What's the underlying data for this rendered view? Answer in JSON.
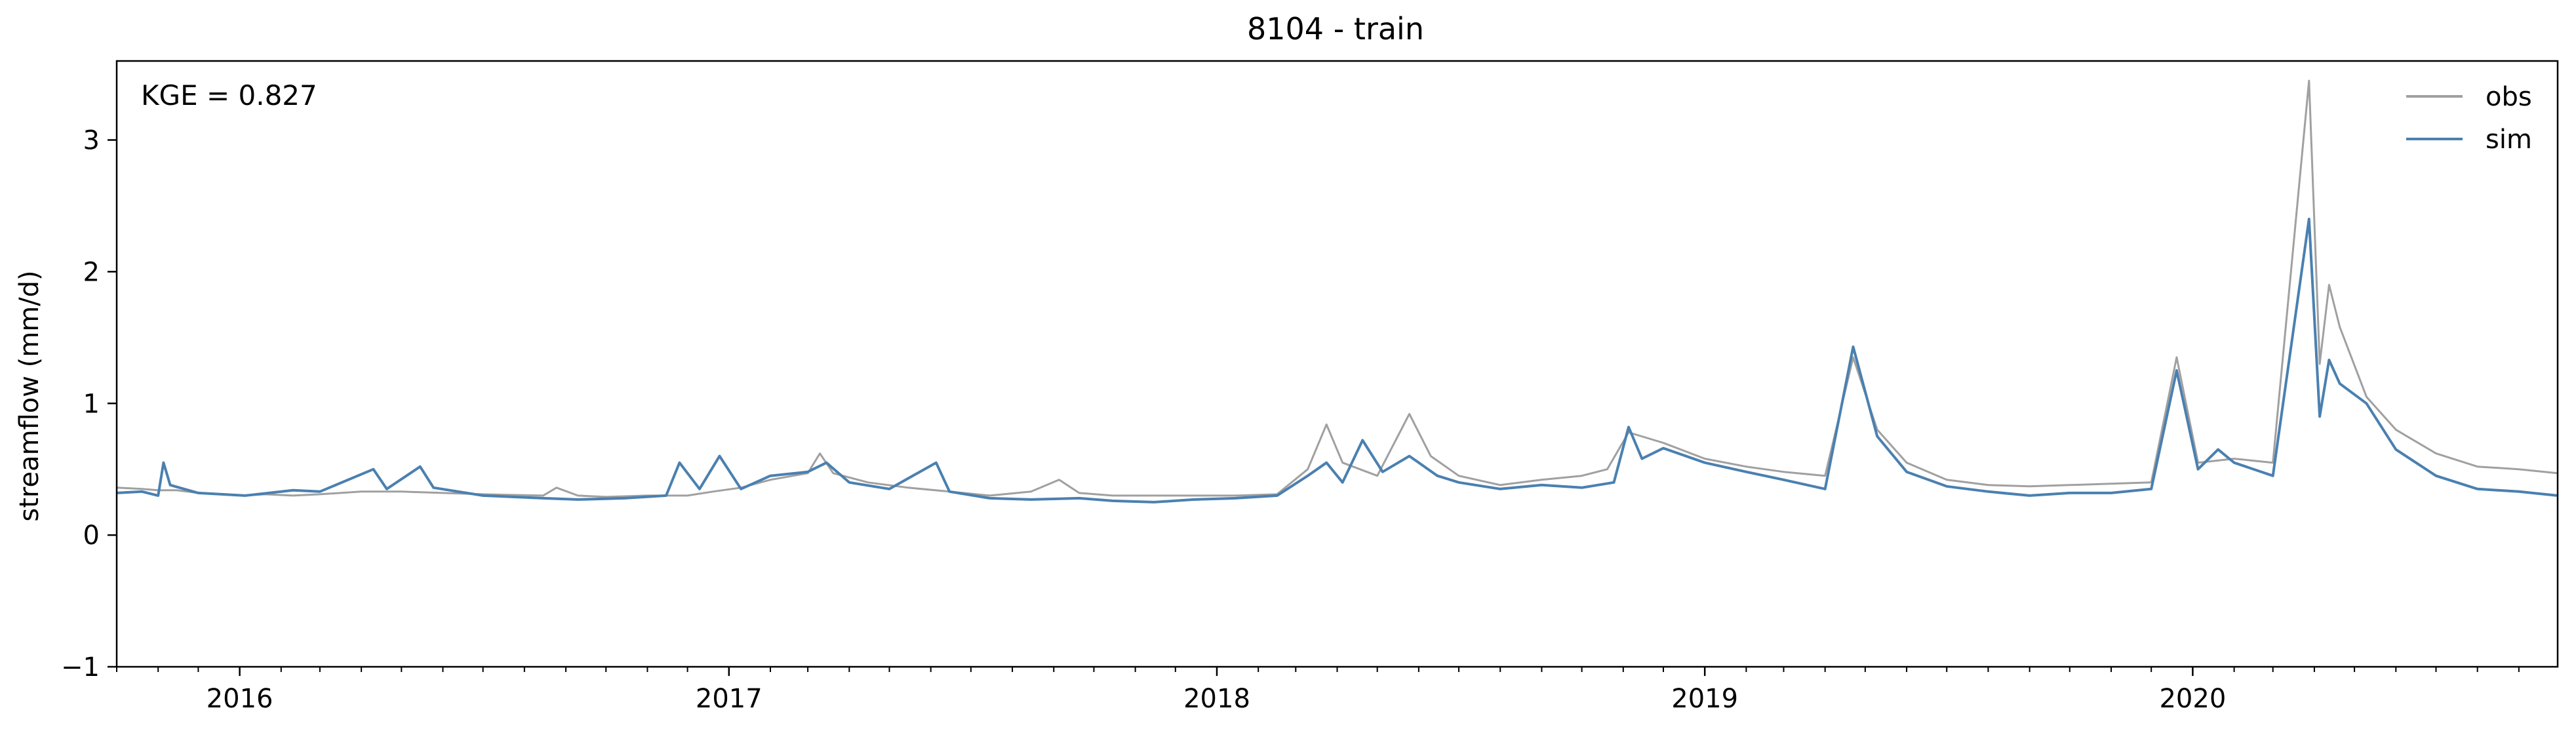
{
  "chart_data": {
    "type": "line",
    "title": "8104 - train",
    "xlabel": "",
    "ylabel": "streamflow (mm/d)",
    "annotation": "KGE = 0.827",
    "x_axis_type": "date",
    "xlim": [
      "2015-10-01",
      "2020-09-30"
    ],
    "ylim": [
      -1,
      3.6
    ],
    "yticks": [
      -1,
      0,
      1,
      2,
      3
    ],
    "ytick_labels": [
      "−1",
      "0",
      "1",
      "2",
      "3"
    ],
    "xtick_labels": [
      "2016",
      "2017",
      "2018",
      "2019",
      "2020"
    ],
    "xtick_dates": [
      "2016-01-01",
      "2017-01-01",
      "2018-01-01",
      "2019-01-01",
      "2020-01-01"
    ],
    "grid": false,
    "legend_position": "top-right",
    "series": [
      {
        "name": "obs",
        "color": "#a0a0a0",
        "points": [
          [
            "2015-10-01",
            0.36
          ],
          [
            "2015-10-20",
            0.35
          ],
          [
            "2015-11-01",
            0.34
          ],
          [
            "2015-11-15",
            0.34
          ],
          [
            "2015-12-01",
            0.32
          ],
          [
            "2015-12-20",
            0.31
          ],
          [
            "2016-01-05",
            0.3
          ],
          [
            "2016-01-20",
            0.31
          ],
          [
            "2016-02-10",
            0.3
          ],
          [
            "2016-03-01",
            0.31
          ],
          [
            "2016-04-01",
            0.33
          ],
          [
            "2016-05-01",
            0.33
          ],
          [
            "2016-06-01",
            0.32
          ],
          [
            "2016-07-01",
            0.31
          ],
          [
            "2016-08-15",
            0.3
          ],
          [
            "2016-08-25",
            0.36
          ],
          [
            "2016-09-10",
            0.3
          ],
          [
            "2016-10-01",
            0.29
          ],
          [
            "2016-11-01",
            0.3
          ],
          [
            "2016-12-01",
            0.3
          ],
          [
            "2016-12-20",
            0.33
          ],
          [
            "2017-01-10",
            0.36
          ],
          [
            "2017-02-01",
            0.42
          ],
          [
            "2017-03-01",
            0.47
          ],
          [
            "2017-03-10",
            0.62
          ],
          [
            "2017-03-20",
            0.47
          ],
          [
            "2017-04-15",
            0.4
          ],
          [
            "2017-05-15",
            0.36
          ],
          [
            "2017-06-15",
            0.33
          ],
          [
            "2017-07-15",
            0.3
          ],
          [
            "2017-08-15",
            0.33
          ],
          [
            "2017-09-05",
            0.42
          ],
          [
            "2017-09-20",
            0.32
          ],
          [
            "2017-10-15",
            0.3
          ],
          [
            "2017-11-15",
            0.3
          ],
          [
            "2017-12-15",
            0.3
          ],
          [
            "2018-01-15",
            0.3
          ],
          [
            "2018-02-15",
            0.31
          ],
          [
            "2018-03-10",
            0.5
          ],
          [
            "2018-03-24",
            0.84
          ],
          [
            "2018-04-05",
            0.55
          ],
          [
            "2018-05-01",
            0.45
          ],
          [
            "2018-05-25",
            0.92
          ],
          [
            "2018-06-10",
            0.6
          ],
          [
            "2018-07-01",
            0.45
          ],
          [
            "2018-08-01",
            0.38
          ],
          [
            "2018-09-01",
            0.42
          ],
          [
            "2018-10-01",
            0.45
          ],
          [
            "2018-10-20",
            0.5
          ],
          [
            "2018-11-05",
            0.78
          ],
          [
            "2018-12-01",
            0.7
          ],
          [
            "2019-01-01",
            0.58
          ],
          [
            "2019-02-01",
            0.52
          ],
          [
            "2019-03-01",
            0.48
          ],
          [
            "2019-04-01",
            0.45
          ],
          [
            "2019-04-22",
            1.35
          ],
          [
            "2019-05-10",
            0.8
          ],
          [
            "2019-06-01",
            0.55
          ],
          [
            "2019-07-01",
            0.42
          ],
          [
            "2019-08-01",
            0.38
          ],
          [
            "2019-09-01",
            0.37
          ],
          [
            "2019-10-01",
            0.38
          ],
          [
            "2019-11-01",
            0.39
          ],
          [
            "2019-12-01",
            0.4
          ],
          [
            "2019-12-20",
            1.35
          ],
          [
            "2020-01-05",
            0.55
          ],
          [
            "2020-02-01",
            0.58
          ],
          [
            "2020-03-01",
            0.55
          ],
          [
            "2020-03-28",
            3.45
          ],
          [
            "2020-04-05",
            1.3
          ],
          [
            "2020-04-12",
            1.9
          ],
          [
            "2020-04-20",
            1.58
          ],
          [
            "2020-05-10",
            1.05
          ],
          [
            "2020-06-01",
            0.8
          ],
          [
            "2020-07-01",
            0.62
          ],
          [
            "2020-08-01",
            0.52
          ],
          [
            "2020-09-01",
            0.5
          ],
          [
            "2020-09-30",
            0.47
          ]
        ]
      },
      {
        "name": "sim",
        "color": "#4a80b0",
        "points": [
          [
            "2015-10-01",
            0.32
          ],
          [
            "2015-10-20",
            0.33
          ],
          [
            "2015-11-01",
            0.3
          ],
          [
            "2015-11-05",
            0.55
          ],
          [
            "2015-11-10",
            0.38
          ],
          [
            "2015-12-01",
            0.32
          ],
          [
            "2016-01-05",
            0.3
          ],
          [
            "2016-02-10",
            0.34
          ],
          [
            "2016-03-01",
            0.33
          ],
          [
            "2016-04-10",
            0.5
          ],
          [
            "2016-04-20",
            0.35
          ],
          [
            "2016-05-15",
            0.52
          ],
          [
            "2016-05-25",
            0.36
          ],
          [
            "2016-07-01",
            0.3
          ],
          [
            "2016-08-15",
            0.28
          ],
          [
            "2016-09-10",
            0.27
          ],
          [
            "2016-10-15",
            0.28
          ],
          [
            "2016-11-15",
            0.3
          ],
          [
            "2016-11-25",
            0.55
          ],
          [
            "2016-12-10",
            0.35
          ],
          [
            "2016-12-25",
            0.6
          ],
          [
            "2017-01-10",
            0.35
          ],
          [
            "2017-02-01",
            0.45
          ],
          [
            "2017-03-01",
            0.48
          ],
          [
            "2017-03-15",
            0.55
          ],
          [
            "2017-04-01",
            0.4
          ],
          [
            "2017-05-01",
            0.35
          ],
          [
            "2017-06-05",
            0.55
          ],
          [
            "2017-06-15",
            0.33
          ],
          [
            "2017-07-15",
            0.28
          ],
          [
            "2017-08-15",
            0.27
          ],
          [
            "2017-09-20",
            0.28
          ],
          [
            "2017-10-15",
            0.26
          ],
          [
            "2017-11-15",
            0.25
          ],
          [
            "2017-12-15",
            0.27
          ],
          [
            "2018-01-15",
            0.28
          ],
          [
            "2018-02-15",
            0.3
          ],
          [
            "2018-03-10",
            0.45
          ],
          [
            "2018-03-24",
            0.55
          ],
          [
            "2018-04-05",
            0.4
          ],
          [
            "2018-04-20",
            0.72
          ],
          [
            "2018-05-05",
            0.48
          ],
          [
            "2018-05-25",
            0.6
          ],
          [
            "2018-06-15",
            0.45
          ],
          [
            "2018-07-01",
            0.4
          ],
          [
            "2018-08-01",
            0.35
          ],
          [
            "2018-09-01",
            0.38
          ],
          [
            "2018-10-01",
            0.36
          ],
          [
            "2018-10-25",
            0.4
          ],
          [
            "2018-11-05",
            0.82
          ],
          [
            "2018-11-15",
            0.58
          ],
          [
            "2018-12-01",
            0.66
          ],
          [
            "2019-01-01",
            0.55
          ],
          [
            "2019-02-01",
            0.48
          ],
          [
            "2019-03-01",
            0.42
          ],
          [
            "2019-04-01",
            0.35
          ],
          [
            "2019-04-22",
            1.43
          ],
          [
            "2019-05-10",
            0.75
          ],
          [
            "2019-06-01",
            0.48
          ],
          [
            "2019-07-01",
            0.37
          ],
          [
            "2019-08-01",
            0.33
          ],
          [
            "2019-09-01",
            0.3
          ],
          [
            "2019-10-01",
            0.32
          ],
          [
            "2019-11-01",
            0.32
          ],
          [
            "2019-12-01",
            0.35
          ],
          [
            "2019-12-20",
            1.25
          ],
          [
            "2020-01-05",
            0.5
          ],
          [
            "2020-01-20",
            0.65
          ],
          [
            "2020-02-01",
            0.55
          ],
          [
            "2020-03-01",
            0.45
          ],
          [
            "2020-03-28",
            2.4
          ],
          [
            "2020-04-05",
            0.9
          ],
          [
            "2020-04-12",
            1.33
          ],
          [
            "2020-04-20",
            1.15
          ],
          [
            "2020-05-10",
            1.0
          ],
          [
            "2020-06-01",
            0.65
          ],
          [
            "2020-07-01",
            0.45
          ],
          [
            "2020-08-01",
            0.35
          ],
          [
            "2020-09-01",
            0.33
          ],
          [
            "2020-09-30",
            0.3
          ]
        ]
      }
    ]
  }
}
